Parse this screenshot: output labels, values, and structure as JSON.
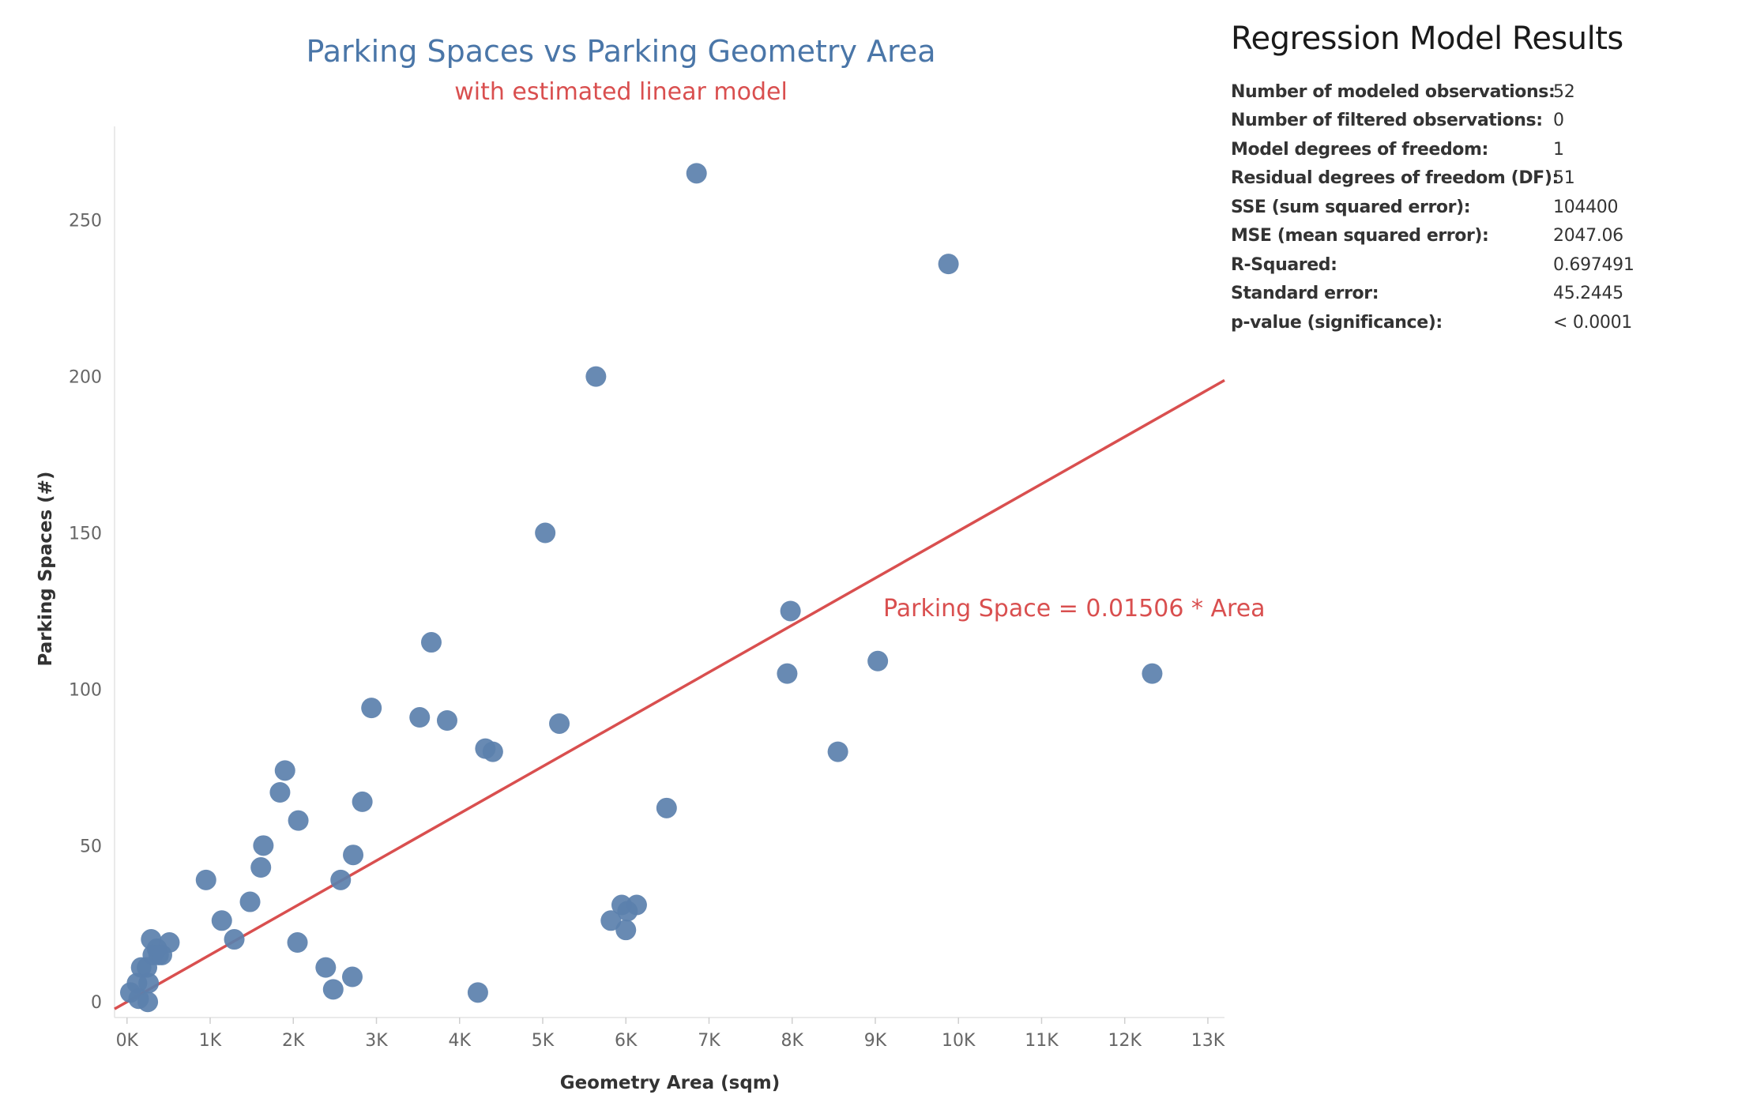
{
  "chart_data": {
    "type": "scatter",
    "title": "Parking Spaces vs Parking Geometry Area",
    "subtitle": "with estimated linear model",
    "xlabel": "Geometry Area (sqm)",
    "ylabel": "Parking Spaces (#)",
    "xlim": [
      -150,
      13200
    ],
    "ylim": [
      -5,
      280
    ],
    "x_ticks": [
      0,
      1000,
      2000,
      3000,
      4000,
      5000,
      6000,
      7000,
      8000,
      9000,
      10000,
      11000,
      12000,
      13000
    ],
    "x_tick_labels": [
      "0K",
      "1K",
      "2K",
      "3K",
      "4K",
      "5K",
      "6K",
      "7K",
      "8K",
      "9K",
      "10K",
      "11K",
      "12K",
      "13K"
    ],
    "y_ticks": [
      0,
      50,
      100,
      150,
      200,
      250
    ],
    "y_tick_labels": [
      "0",
      "50",
      "100",
      "150",
      "200",
      "250"
    ],
    "grid": false,
    "point_color": "#5b80ad",
    "line_color": "#d94f4f",
    "title_color": "#4a76a8",
    "subtitle_color": "#d94f4f",
    "trend_line": {
      "slope": 0.01506,
      "intercept": 0
    },
    "annotation": "Parking Space = 0.01506 * Area",
    "points": [
      {
        "x": 6850,
        "y": 265
      },
      {
        "x": 9880,
        "y": 236
      },
      {
        "x": 5640,
        "y": 200
      },
      {
        "x": 5030,
        "y": 150
      },
      {
        "x": 7980,
        "y": 125
      },
      {
        "x": 3660,
        "y": 115
      },
      {
        "x": 7940,
        "y": 105
      },
      {
        "x": 9030,
        "y": 109
      },
      {
        "x": 12330,
        "y": 105
      },
      {
        "x": 2940,
        "y": 94
      },
      {
        "x": 3520,
        "y": 91
      },
      {
        "x": 3850,
        "y": 90
      },
      {
        "x": 5200,
        "y": 89
      },
      {
        "x": 4310,
        "y": 81
      },
      {
        "x": 4400,
        "y": 80
      },
      {
        "x": 8550,
        "y": 80
      },
      {
        "x": 1900,
        "y": 74
      },
      {
        "x": 1840,
        "y": 67
      },
      {
        "x": 2830,
        "y": 64
      },
      {
        "x": 6490,
        "y": 62
      },
      {
        "x": 2060,
        "y": 58
      },
      {
        "x": 1640,
        "y": 50
      },
      {
        "x": 2720,
        "y": 47
      },
      {
        "x": 1610,
        "y": 43
      },
      {
        "x": 950,
        "y": 39
      },
      {
        "x": 2570,
        "y": 39
      },
      {
        "x": 1480,
        "y": 32
      },
      {
        "x": 5950,
        "y": 31
      },
      {
        "x": 6130,
        "y": 31
      },
      {
        "x": 6020,
        "y": 29
      },
      {
        "x": 1140,
        "y": 26
      },
      {
        "x": 5820,
        "y": 26
      },
      {
        "x": 6000,
        "y": 23
      },
      {
        "x": 1290,
        "y": 20
      },
      {
        "x": 290,
        "y": 20
      },
      {
        "x": 510,
        "y": 19
      },
      {
        "x": 2050,
        "y": 19
      },
      {
        "x": 360,
        "y": 17
      },
      {
        "x": 310,
        "y": 15
      },
      {
        "x": 380,
        "y": 15
      },
      {
        "x": 170,
        "y": 11
      },
      {
        "x": 240,
        "y": 11
      },
      {
        "x": 2390,
        "y": 11
      },
      {
        "x": 2710,
        "y": 8
      },
      {
        "x": 120,
        "y": 6
      },
      {
        "x": 260,
        "y": 6
      },
      {
        "x": 40,
        "y": 3
      },
      {
        "x": 2480,
        "y": 4
      },
      {
        "x": 4220,
        "y": 3
      },
      {
        "x": 140,
        "y": 1
      },
      {
        "x": 250,
        "y": 0
      },
      {
        "x": 420,
        "y": 15
      }
    ]
  },
  "regression": {
    "title": "Regression Model Results",
    "rows": [
      {
        "label": "Number of modeled observations:",
        "value": "52"
      },
      {
        "label": "Number of filtered observations:",
        "value": "0"
      },
      {
        "label": "Model degrees of freedom:",
        "value": "1"
      },
      {
        "label": "Residual degrees of freedom (DF):",
        "value": "51"
      },
      {
        "label": "SSE (sum squared error):",
        "value": "104400"
      },
      {
        "label": "MSE (mean squared error):",
        "value": "2047.06"
      },
      {
        "label": "R-Squared:",
        "value": "0.697491"
      },
      {
        "label": "Standard error:",
        "value": "45.2445"
      },
      {
        "label": "p-value (significance):",
        "value": "< 0.0001"
      }
    ]
  }
}
